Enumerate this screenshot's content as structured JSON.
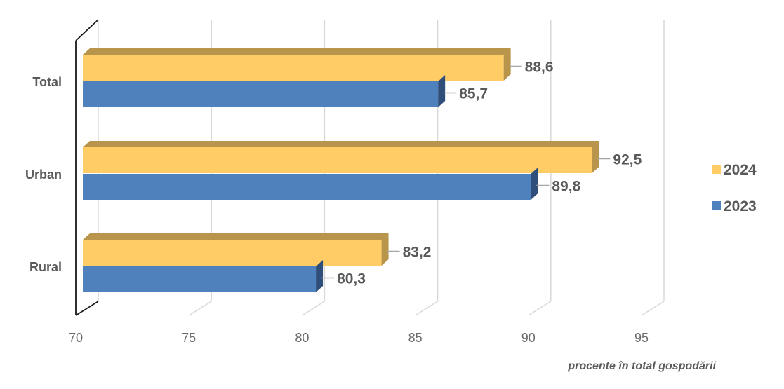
{
  "chart_data": {
    "type": "bar",
    "orientation": "horizontal",
    "style": "3d",
    "categories": [
      "Total",
      "Urban",
      "Rural"
    ],
    "series": [
      {
        "name": "2024",
        "values": [
          88.6,
          92.5,
          83.2
        ],
        "value_labels": [
          "88,6",
          "92,5",
          "83,2"
        ],
        "color": "#FFCC66",
        "side_color": "#B8954A"
      },
      {
        "name": "2023",
        "values": [
          85.7,
          89.8,
          80.3
        ],
        "value_labels": [
          "85,7",
          "89,8",
          "80,3"
        ],
        "color": "#4F81BD",
        "side_color": "#2F4F7A"
      }
    ],
    "xlim": [
      70,
      95
    ],
    "xticks": [
      70,
      75,
      80,
      85,
      90,
      95
    ],
    "xlabel": "procente în total gospodării",
    "grid": true,
    "legend_position": "right"
  }
}
